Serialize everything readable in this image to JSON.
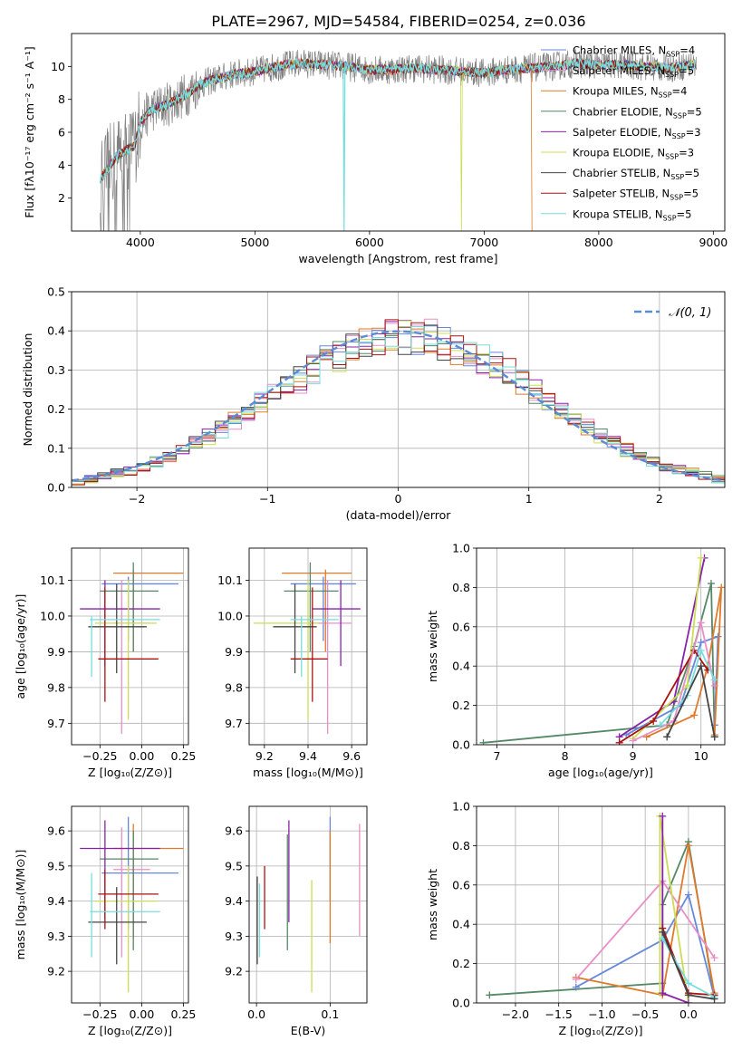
{
  "figure_title": "PLATE=2967, MJD=54584, FIBERID=0254, z=0.036",
  "colors": {
    "cm": "#6688dd",
    "sm": "#e88fc8",
    "km": "#e07a2a",
    "ce": "#558866",
    "se": "#8822aa",
    "ke": "#ccdd55",
    "cs": "#444444",
    "ss": "#aa1111",
    "ks": "#77dddd",
    "data": "#808080",
    "normal": "#5b8bd6"
  },
  "legend_spectrum": [
    {
      "key": "cm",
      "label": "Chabrier MILES, N",
      "sub": "SSP",
      "tail": "=4"
    },
    {
      "key": "sm",
      "label": "Salpeter MILES, N",
      "sub": "SSP",
      "tail": "=5"
    },
    {
      "key": "km",
      "label": "Kroupa MILES, N",
      "sub": "SSP",
      "tail": "=4"
    },
    {
      "key": "ce",
      "label": "Chabrier ELODIE, N",
      "sub": "SSP",
      "tail": "=5"
    },
    {
      "key": "se",
      "label": "Salpeter ELODIE, N",
      "sub": "SSP",
      "tail": "=3"
    },
    {
      "key": "ke",
      "label": "Kroupa ELODIE, N",
      "sub": "SSP",
      "tail": "=3"
    },
    {
      "key": "cs",
      "label": "Chabrier STELIB, N",
      "sub": "SSP",
      "tail": "=5"
    },
    {
      "key": "ss",
      "label": "Salpeter STELIB, N",
      "sub": "SSP",
      "tail": "=5"
    },
    {
      "key": "ks",
      "label": "Kroupa STELIB, N",
      "sub": "SSP",
      "tail": "=5"
    }
  ],
  "chart_data": [
    {
      "id": "spectrum",
      "type": "line",
      "xlabel": "wavelength [Angstrom, rest frame]",
      "ylabel": "Flux [fλ10⁻¹⁷ erg cm⁻² s⁻¹ A⁻¹]",
      "xlim": [
        3400,
        9100
      ],
      "ylim": [
        0,
        12
      ],
      "xticks": [
        4000,
        5000,
        6000,
        7000,
        8000,
        9000
      ],
      "yticks": [
        2,
        4,
        6,
        8,
        10
      ],
      "continuum": [
        [
          3650,
          3.2
        ],
        [
          3700,
          3.6
        ],
        [
          3800,
          4.6
        ],
        [
          3900,
          5.0
        ],
        [
          3950,
          5.2
        ],
        [
          4000,
          6.6
        ],
        [
          4100,
          7.4
        ],
        [
          4200,
          7.6
        ],
        [
          4300,
          7.9
        ],
        [
          4400,
          8.3
        ],
        [
          4500,
          8.8
        ],
        [
          4600,
          9.1
        ],
        [
          4700,
          9.3
        ],
        [
          4800,
          9.5
        ],
        [
          5000,
          9.7
        ],
        [
          5200,
          10.0
        ],
        [
          5400,
          10.2
        ],
        [
          5600,
          10.1
        ],
        [
          5800,
          10.0
        ],
        [
          6000,
          9.8
        ],
        [
          6200,
          9.8
        ],
        [
          6400,
          9.9
        ],
        [
          6600,
          9.8
        ],
        [
          6800,
          9.7
        ],
        [
          7000,
          9.6
        ],
        [
          7200,
          9.8
        ],
        [
          7400,
          9.9
        ],
        [
          7600,
          10.0
        ],
        [
          7800,
          10.2
        ],
        [
          8000,
          10.1
        ],
        [
          8200,
          10.1
        ],
        [
          8400,
          10.0
        ],
        [
          8600,
          9.9
        ],
        [
          8800,
          10.1
        ]
      ],
      "model_dropouts": [
        [
          5780,
          "ks"
        ],
        [
          6800,
          "ke"
        ],
        [
          7420,
          "km"
        ]
      ]
    },
    {
      "id": "residuals",
      "type": "histogram",
      "xlabel": "(data-model)/error",
      "ylabel": "Normed distribution",
      "xlim": [
        -2.5,
        2.5
      ],
      "ylim": [
        0,
        0.5
      ],
      "xticks": [
        -2,
        -1,
        0,
        1,
        2
      ],
      "yticks": [
        0.0,
        0.1,
        0.2,
        0.3,
        0.4,
        0.5
      ],
      "grid": true,
      "legend": "top-right",
      "legend_label": "𝒩(0, 1)",
      "bin_width": 0.1
    },
    {
      "id": "age_vs_Z",
      "type": "errorbar",
      "xlabel": "Z [log₁₀(Z/Z⊙)]",
      "ylabel": "age  [log₁₀(age/yr)]",
      "xlim": [
        -0.42,
        0.28
      ],
      "ylim": [
        9.64,
        10.19
      ],
      "xticks": [
        -0.25,
        0.0,
        0.25
      ],
      "yticks": [
        9.7,
        9.8,
        9.9,
        10.0,
        10.1
      ],
      "grid": true,
      "points": [
        {
          "key": "cm",
          "x": -0.08,
          "xe": [
            0.16,
            0.3
          ],
          "y": 10.09,
          "ye": [
            0.16,
            0.02
          ]
        },
        {
          "key": "sm",
          "x": -0.12,
          "xe": [
            0.05,
            0.17
          ],
          "y": 9.98,
          "ye": [
            0.31,
            0.12
          ]
        },
        {
          "key": "km",
          "x": -0.05,
          "xe": [
            0.12,
            0.3
          ],
          "y": 10.12,
          "ye": [
            0.22,
            0.01
          ]
        },
        {
          "key": "ce",
          "x": -0.05,
          "xe": [
            0.2,
            0.15
          ],
          "y": 10.07,
          "ye": [
            0.17,
            0.08
          ]
        },
        {
          "key": "se",
          "x": -0.22,
          "xe": [
            0.15,
            0.33
          ],
          "y": 10.02,
          "ye": [
            0.16,
            0.08
          ]
        },
        {
          "key": "ke",
          "x": -0.08,
          "xe": [
            0.2,
            0.17
          ],
          "y": 9.98,
          "ye": [
            0.27,
            0.12
          ]
        },
        {
          "key": "cs",
          "x": -0.15,
          "xe": [
            0.17,
            0.18
          ],
          "y": 9.97,
          "ye": [
            0.13,
            0.12
          ]
        },
        {
          "key": "ss",
          "x": -0.22,
          "xe": [
            0.04,
            0.32
          ],
          "y": 9.88,
          "ye": [
            0.12,
            0.2
          ]
        },
        {
          "key": "ks",
          "x": -0.3,
          "xe": [
            0.01,
            0.41
          ],
          "y": 9.99,
          "ye": [
            0.16,
            0.01
          ]
        }
      ]
    },
    {
      "id": "age_vs_mass",
      "type": "errorbar",
      "xlabel": "mass [log₁₀(M/M⊙)]",
      "ylabel": "",
      "xlim": [
        9.13,
        9.67
      ],
      "ylim": [
        9.64,
        10.19
      ],
      "xticks": [
        9.2,
        9.4,
        9.6
      ],
      "yticks": [
        9.7,
        9.8,
        9.9,
        10.0,
        10.1
      ],
      "grid": true,
      "points": [
        {
          "key": "cm",
          "x": 9.47,
          "xe": [
            0.15,
            0.15
          ],
          "y": 10.09,
          "ye": [
            0.16,
            0.02
          ]
        },
        {
          "key": "sm",
          "x": 9.49,
          "xe": [
            0.07,
            0.11
          ],
          "y": 9.98,
          "ye": [
            0.31,
            0.12
          ]
        },
        {
          "key": "km",
          "x": 9.48,
          "xe": [
            0.2,
            0.12
          ],
          "y": 10.12,
          "ye": [
            0.22,
            0.01
          ]
        },
        {
          "key": "ce",
          "x": 9.41,
          "xe": [
            0.12,
            0.13
          ],
          "y": 10.07,
          "ye": [
            0.17,
            0.08
          ]
        },
        {
          "key": "se",
          "x": 9.55,
          "xe": [
            0.13,
            0.09
          ],
          "y": 10.02,
          "ye": [
            0.16,
            0.08
          ]
        },
        {
          "key": "ke",
          "x": 9.4,
          "xe": [
            0.25,
            0.05
          ],
          "y": 9.98,
          "ye": [
            0.27,
            0.12
          ]
        },
        {
          "key": "cs",
          "x": 9.34,
          "xe": [
            0.1,
            0.1
          ],
          "y": 9.97,
          "ye": [
            0.13,
            0.12
          ]
        },
        {
          "key": "ss",
          "x": 9.42,
          "xe": [
            0.1,
            0.07
          ],
          "y": 9.88,
          "ye": [
            0.12,
            0.2
          ]
        },
        {
          "key": "ks",
          "x": 9.37,
          "xe": [
            0.05,
            0.17
          ],
          "y": 9.99,
          "ye": [
            0.16,
            0.01
          ]
        }
      ]
    },
    {
      "id": "weight_vs_age",
      "type": "line",
      "xlabel": "age  [log₁₀(age/yr)]",
      "ylabel": "mass weight",
      "xlim": [
        6.7,
        10.35
      ],
      "ylim": [
        0,
        1.0
      ],
      "xticks": [
        7,
        8,
        9,
        10
      ],
      "yticks": [
        0.0,
        0.2,
        0.4,
        0.6,
        0.8,
        1.0
      ],
      "grid": true,
      "series": [
        {
          "key": "ce",
          "x": [
            6.8,
            9.5,
            9.9,
            10.15,
            10.2
          ],
          "y": [
            0.01,
            0.1,
            0.5,
            0.82,
            0.04
          ]
        },
        {
          "key": "cm",
          "x": [
            8.9,
            9.7,
            10.0,
            10.25,
            10.2
          ],
          "y": [
            0.05,
            0.2,
            0.52,
            0.55,
            0.1
          ]
        },
        {
          "key": "km",
          "x": [
            9.2,
            9.9,
            10.1,
            10.3,
            10.2
          ],
          "y": [
            0.04,
            0.15,
            0.4,
            0.8,
            0.05
          ]
        },
        {
          "key": "se",
          "x": [
            8.8,
            9.6,
            10.05
          ],
          "y": [
            0.04,
            0.22,
            0.95
          ]
        },
        {
          "key": "ke",
          "x": [
            9.0,
            9.8,
            10.0
          ],
          "y": [
            0.03,
            0.3,
            0.95
          ]
        },
        {
          "key": "ss",
          "x": [
            8.8,
            9.3,
            9.9,
            10.1
          ],
          "y": [
            0.01,
            0.12,
            0.48,
            0.38
          ]
        },
        {
          "key": "sm",
          "x": [
            9.0,
            9.6,
            10.0,
            10.2
          ],
          "y": [
            0.02,
            0.12,
            0.62,
            0.3
          ]
        },
        {
          "key": "ks",
          "x": [
            9.4,
            9.8,
            10.0,
            10.2
          ],
          "y": [
            0.1,
            0.25,
            0.48,
            0.33
          ]
        },
        {
          "key": "cs",
          "x": [
            9.5,
            10.0,
            10.2
          ],
          "y": [
            0.04,
            0.4,
            0.04
          ]
        }
      ]
    },
    {
      "id": "mass_vs_Z",
      "type": "errorbar",
      "xlabel": "Z [log₁₀(Z/Z⊙)]",
      "ylabel": "mass [log₁₀(M/M⊙)]",
      "xlim": [
        -0.42,
        0.28
      ],
      "ylim": [
        9.11,
        9.67
      ],
      "xticks": [
        -0.25,
        0.0,
        0.25
      ],
      "yticks": [
        9.2,
        9.3,
        9.4,
        9.5,
        9.6
      ],
      "grid": true,
      "points": [
        {
          "key": "cm",
          "x": -0.08,
          "xe": [
            0.16,
            0.3
          ],
          "y": 9.48,
          "ye": [
            0.16,
            0.16
          ]
        },
        {
          "key": "sm",
          "x": -0.12,
          "xe": [
            0.05,
            0.17
          ],
          "y": 9.49,
          "ye": [
            0.25,
            0.12
          ]
        },
        {
          "key": "km",
          "x": -0.05,
          "xe": [
            0.12,
            0.3
          ],
          "y": 9.55,
          "ye": [
            0.26,
            0.07
          ]
        },
        {
          "key": "ce",
          "x": -0.05,
          "xe": [
            0.2,
            0.15
          ],
          "y": 9.52,
          "ye": [
            0.26,
            0.08
          ]
        },
        {
          "key": "se",
          "x": -0.22,
          "xe": [
            0.15,
            0.33
          ],
          "y": 9.55,
          "ye": [
            0.2,
            0.08
          ]
        },
        {
          "key": "ke",
          "x": -0.08,
          "xe": [
            0.2,
            0.17
          ],
          "y": 9.4,
          "ye": [
            0.26,
            0.1
          ]
        },
        {
          "key": "cs",
          "x": -0.15,
          "xe": [
            0.17,
            0.18
          ],
          "y": 9.34,
          "ye": [
            0.12,
            0.1
          ]
        },
        {
          "key": "ss",
          "x": -0.22,
          "xe": [
            0.04,
            0.32
          ],
          "y": 9.42,
          "ye": [
            0.1,
            0.07
          ]
        },
        {
          "key": "ks",
          "x": -0.3,
          "xe": [
            0.01,
            0.41
          ],
          "y": 9.37,
          "ye": [
            0.13,
            0.11
          ]
        }
      ]
    },
    {
      "id": "mass_vs_ebv",
      "type": "errorbar",
      "xlabel": "E(B-V)",
      "ylabel": "",
      "xlim": [
        -0.01,
        0.15
      ],
      "ylim": [
        9.11,
        9.67
      ],
      "xticks": [
        0.0,
        0.1
      ],
      "yticks": [
        9.2,
        9.3,
        9.4,
        9.5,
        9.6
      ],
      "grid": true,
      "points": [
        {
          "key": "cm",
          "x": 0.1,
          "y": 9.5,
          "ye": [
            0.1,
            0.14
          ]
        },
        {
          "key": "km",
          "x": 0.1,
          "y": 9.44,
          "ye": [
            0.16,
            0.16
          ]
        },
        {
          "key": "ce",
          "x": 0.042,
          "y": 9.42,
          "ye": [
            0.16,
            0.17
          ]
        },
        {
          "key": "se",
          "x": 0.044,
          "y": 9.48,
          "ye": [
            0.14,
            0.15
          ]
        },
        {
          "key": "ke",
          "x": 0.075,
          "y": 9.3,
          "ye": [
            0.16,
            0.16
          ]
        },
        {
          "key": "cs",
          "x": 0.001,
          "y": 9.3,
          "ye": [
            0.08,
            0.17
          ]
        },
        {
          "key": "ss",
          "x": 0.011,
          "y": 9.41,
          "ye": [
            0.09,
            0.09
          ]
        },
        {
          "key": "sm",
          "x": 0.14,
          "y": 9.46,
          "ye": [
            0.16,
            0.16
          ]
        },
        {
          "key": "ks",
          "x": 0.004,
          "y": 9.32,
          "ye": [
            0.08,
            0.13
          ]
        }
      ]
    },
    {
      "id": "weight_vs_Z",
      "type": "line",
      "xlabel": "Z [log₁₀(Z/Z⊙)]",
      "ylabel": "mass weight",
      "xlim": [
        -2.45,
        0.42
      ],
      "ylim": [
        0,
        1.0
      ],
      "xticks": [
        -2.0,
        -1.5,
        -1.0,
        -0.5,
        0.0
      ],
      "yticks": [
        0.0,
        0.2,
        0.4,
        0.6,
        0.8,
        1.0
      ],
      "grid": true,
      "series": [
        {
          "key": "ce",
          "x": [
            -2.3,
            -0.3,
            -0.3,
            0.0,
            0.3
          ],
          "y": [
            0.04,
            0.1,
            0.5,
            0.82,
            0.03
          ]
        },
        {
          "key": "cm",
          "x": [
            -1.3,
            -0.3,
            0.0,
            0.3
          ],
          "y": [
            0.08,
            0.32,
            0.55,
            0.03
          ]
        },
        {
          "key": "km",
          "x": [
            -1.3,
            -0.3,
            0.0,
            0.3
          ],
          "y": [
            0.13,
            0.04,
            0.8,
            0.05
          ]
        },
        {
          "key": "sm",
          "x": [
            -1.3,
            -0.3,
            0.3
          ],
          "y": [
            0.12,
            0.62,
            0.23
          ]
        },
        {
          "key": "ke",
          "x": [
            -0.33,
            -0.33,
            0.0
          ],
          "y": [
            0.05,
            0.95,
            0.0
          ]
        },
        {
          "key": "se",
          "x": [
            -0.3,
            -0.3,
            0.0
          ],
          "y": [
            0.95,
            0.05,
            0.0
          ]
        },
        {
          "key": "ss",
          "x": [
            -0.3,
            0.0,
            0.3
          ],
          "y": [
            0.38,
            0.05,
            0.04
          ]
        },
        {
          "key": "ks",
          "x": [
            -0.3,
            0.0,
            0.3
          ],
          "y": [
            0.33,
            0.1,
            0.03
          ]
        },
        {
          "key": "cs",
          "x": [
            -0.3,
            0.0,
            0.3
          ],
          "y": [
            0.36,
            0.04,
            0.02
          ]
        }
      ]
    }
  ]
}
